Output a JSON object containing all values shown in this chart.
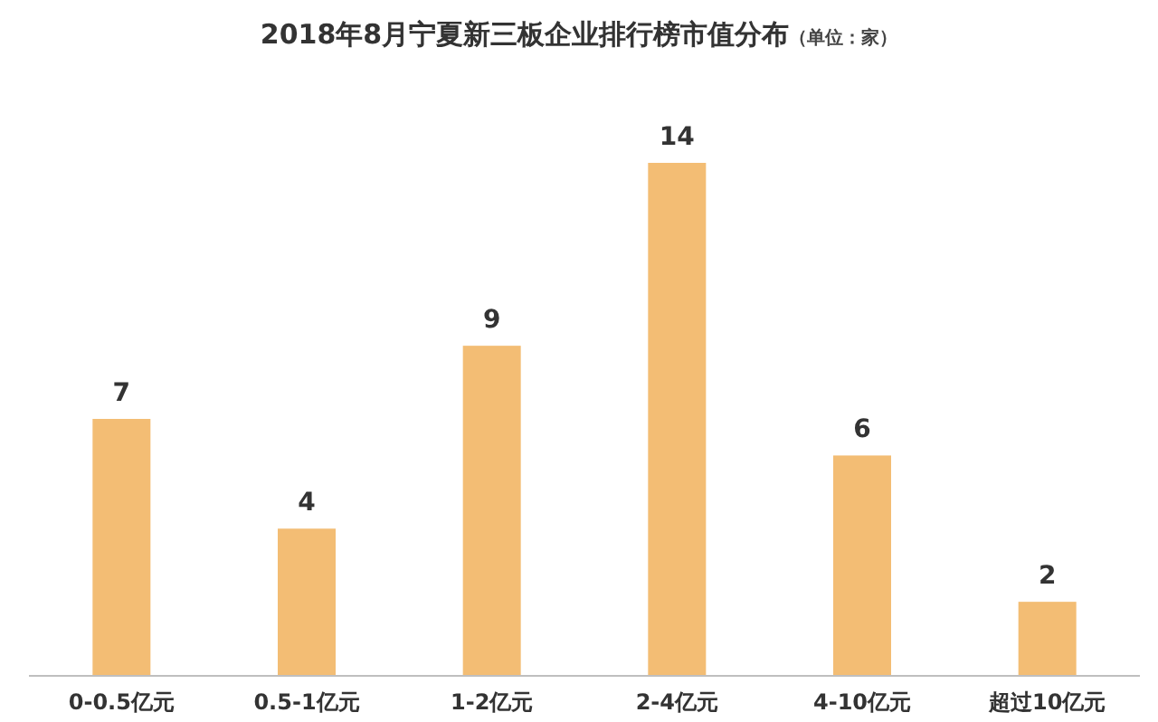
{
  "chart_data": {
    "type": "bar",
    "title": "2018年8月宁夏新三板企业排行榜市值分布",
    "subtitle": "（单位：家）",
    "categories": [
      "0-0.5亿元",
      "0.5-1亿元",
      "1-2亿元",
      "2-4亿元",
      "4-10亿元",
      "超过10亿元"
    ],
    "values": [
      7,
      4,
      9,
      14,
      6,
      2
    ],
    "color": "#f3bd74",
    "data_labels": true
  }
}
